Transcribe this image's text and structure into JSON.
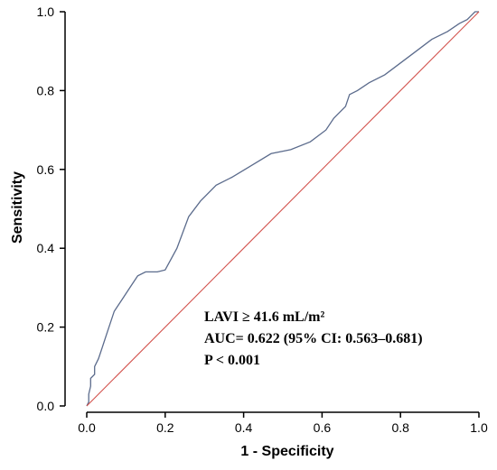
{
  "chart_data": {
    "type": "line",
    "title": "",
    "xlabel": "1 - Specificity",
    "ylabel": "Sensitivity",
    "xlim": [
      0.0,
      1.0
    ],
    "ylim": [
      0.0,
      1.0
    ],
    "grid": false,
    "x_ticks": [
      "0.0",
      "0.2",
      "0.4",
      "0.6",
      "0.8",
      "1.0"
    ],
    "y_ticks": [
      "0.0",
      "0.2",
      "0.4",
      "0.6",
      "0.8",
      "1.0"
    ],
    "series": [
      {
        "name": "",
        "color": "#5b6b8c",
        "x": [
          0.0,
          0.005,
          0.005,
          0.01,
          0.01,
          0.02,
          0.02,
          0.03,
          0.04,
          0.05,
          0.07,
          0.09,
          0.11,
          0.13,
          0.15,
          0.18,
          0.2,
          0.23,
          0.26,
          0.29,
          0.33,
          0.37,
          0.42,
          0.47,
          0.52,
          0.57,
          0.61,
          0.63,
          0.64,
          0.66,
          0.67,
          0.69,
          0.72,
          0.76,
          0.8,
          0.84,
          0.88,
          0.92,
          0.95,
          0.97,
          0.98,
          0.99,
          1.0
        ],
        "y": [
          0.0,
          0.01,
          0.03,
          0.05,
          0.07,
          0.08,
          0.1,
          0.12,
          0.15,
          0.18,
          0.24,
          0.27,
          0.3,
          0.33,
          0.34,
          0.34,
          0.345,
          0.4,
          0.48,
          0.52,
          0.56,
          0.58,
          0.61,
          0.64,
          0.65,
          0.67,
          0.7,
          0.73,
          0.74,
          0.76,
          0.79,
          0.8,
          0.82,
          0.84,
          0.87,
          0.9,
          0.93,
          0.95,
          0.97,
          0.98,
          0.99,
          1.0,
          1.0
        ]
      },
      {
        "name": "",
        "color": "#d2504b",
        "x": [
          0.0,
          1.0
        ],
        "y": [
          0.0,
          1.0
        ]
      }
    ],
    "annotations": [
      "LAVI ≥ 41.6 mL/m²",
      "AUC= 0.622 (95% CI: 0.563–0.681)",
      "P < 0.001"
    ]
  }
}
